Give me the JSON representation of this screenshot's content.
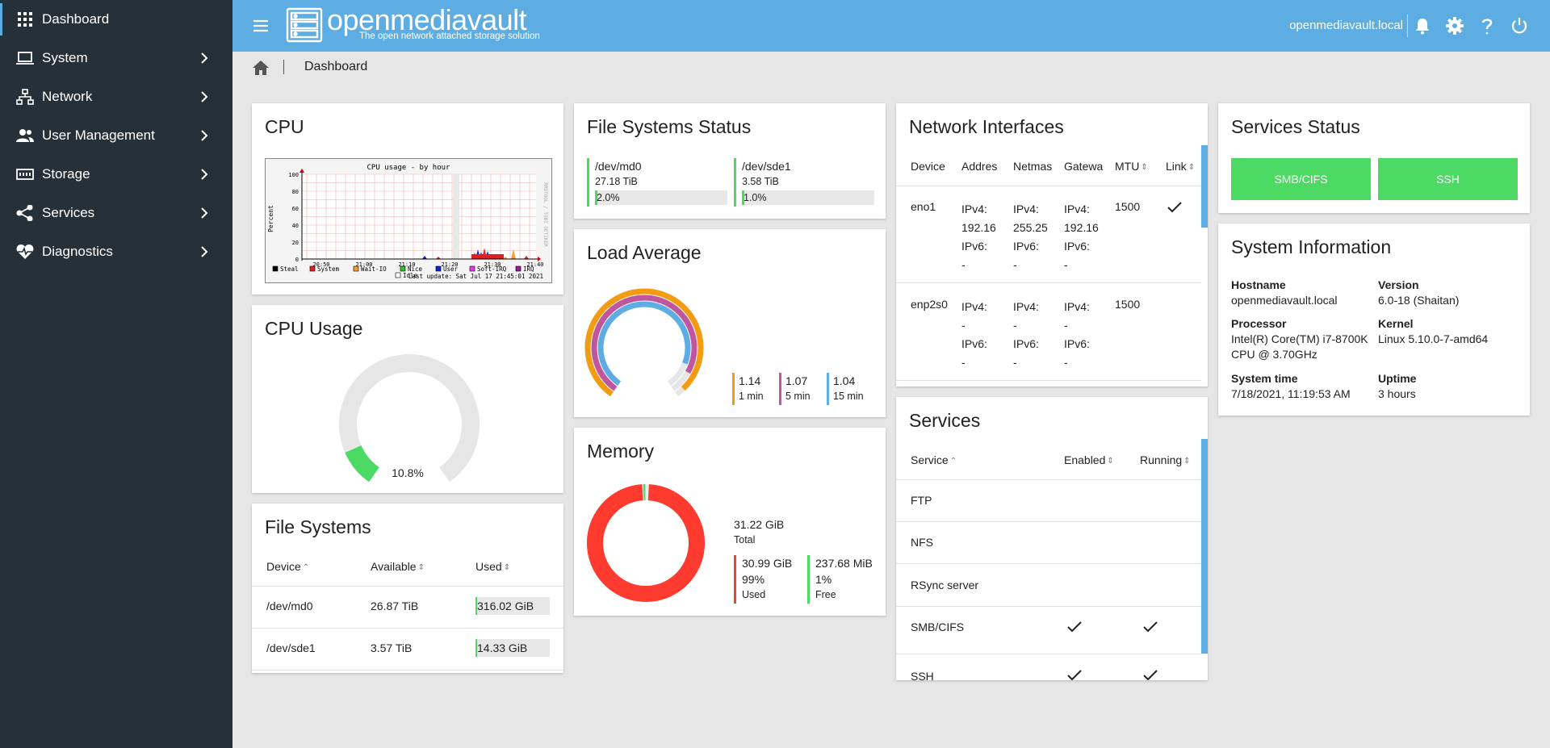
{
  "sidebar": {
    "items": [
      {
        "label": "Dashboard"
      },
      {
        "label": "System"
      },
      {
        "label": "Network"
      },
      {
        "label": "User Management"
      },
      {
        "label": "Storage"
      },
      {
        "label": "Services"
      },
      {
        "label": "Diagnostics"
      }
    ]
  },
  "header": {
    "brand": "openmediavault",
    "tagline": "The open network attached storage solution",
    "hostname": "openmediavault.local"
  },
  "breadcrumb": {
    "current": "Dashboard"
  },
  "cpu": {
    "title": "CPU",
    "graph_title": "CPU usage - by hour",
    "y_label": "Percent",
    "y_ticks": [
      "100",
      "80",
      "60",
      "40",
      "20",
      "0"
    ],
    "x_ticks": [
      "20:50",
      "21:00",
      "21:10",
      "21:20",
      "21:30",
      "21:40"
    ],
    "side_text": "RRDTOOL / TOBI OETIKER",
    "legend": [
      {
        "label": "Steal",
        "color": "#000000"
      },
      {
        "label": "System",
        "color": "#e02020"
      },
      {
        "label": "Wait-IO",
        "color": "#f0a030"
      },
      {
        "label": "Nice",
        "color": "#30c030"
      },
      {
        "label": "User",
        "color": "#1020d0"
      },
      {
        "label": "Soft-IRQ",
        "color": "#e040e0"
      },
      {
        "label": "IRQ",
        "color": "#902090"
      },
      {
        "label": "Idle",
        "color": "#ffffff"
      }
    ],
    "last_update": "Last update: Sat Jul 17 21:45:01 2021"
  },
  "cpu_usage": {
    "title": "CPU Usage",
    "value": "10.8%",
    "fraction": 0.108
  },
  "file_systems": {
    "title": "File Systems",
    "columns": [
      "Device",
      "Available",
      "Used"
    ],
    "rows": [
      {
        "device": "/dev/md0",
        "available": "26.87 TiB",
        "used": "316.02 GiB",
        "fraction": 0.02
      },
      {
        "device": "/dev/sde1",
        "available": "3.57 TiB",
        "used": "14.33 GiB",
        "fraction": 0.01
      }
    ]
  },
  "fs_status": {
    "title": "File Systems Status",
    "items": [
      {
        "device": "/dev/md0",
        "size": "27.18 TiB",
        "percent": "2.0%",
        "fraction": 0.02
      },
      {
        "device": "/dev/sde1",
        "size": "3.58 TiB",
        "percent": "1.0%",
        "fraction": 0.01
      }
    ]
  },
  "load": {
    "title": "Load Average",
    "items": [
      {
        "value": "1.14",
        "label": "1 min",
        "color": "#f39c12",
        "fraction": 1.0
      },
      {
        "value": "1.07",
        "label": "5 min",
        "color": "#c0569e",
        "fraction": 0.94
      },
      {
        "value": "1.04",
        "label": "15 min",
        "color": "#5dade2",
        "fraction": 0.91
      }
    ]
  },
  "memory": {
    "title": "Memory",
    "total": "31.22 GiB",
    "total_label": "Total",
    "used": {
      "value": "30.99 GiB",
      "percent": "99%",
      "label": "Used",
      "color": "#ff3b30",
      "fraction": 0.99
    },
    "free": {
      "value": "237.68 MiB",
      "percent": "1%",
      "label": "Free",
      "color": "#4cd964"
    }
  },
  "network": {
    "title": "Network Interfaces",
    "columns": [
      "Device",
      "Addres",
      "Netmas",
      "Gatewa",
      "MTU",
      "Link"
    ],
    "rows": [
      {
        "device": "eno1",
        "addr": [
          "IPv4:",
          "192.16",
          "IPv6:",
          "-"
        ],
        "mask": [
          "IPv4:",
          "255.25",
          "IPv6:",
          "-"
        ],
        "gw": [
          "IPv4:",
          "192.16",
          "IPv6:",
          "-"
        ],
        "mtu": "1500"
      },
      {
        "device": "enp2s0",
        "addr": [
          "IPv4:",
          "-",
          "IPv6:",
          "-"
        ],
        "mask": [
          "IPv4:",
          "-",
          "IPv6:",
          "-"
        ],
        "gw": [
          "IPv4:",
          "-",
          "IPv6:",
          "-"
        ],
        "mtu": "1500"
      }
    ]
  },
  "services": {
    "title": "Services",
    "columns": [
      "Service",
      "Enabled",
      "Running"
    ],
    "rows": [
      {
        "name": "FTP"
      },
      {
        "name": "NFS"
      },
      {
        "name": "RSync server"
      },
      {
        "name": "SMB/CIFS"
      },
      {
        "name": "SSH"
      }
    ]
  },
  "services_status": {
    "title": "Services Status",
    "buttons": [
      "SMB/CIFS",
      "SSH"
    ]
  },
  "sysinfo": {
    "title": "System Information",
    "hostname_label": "Hostname",
    "hostname": "openmediavault.local",
    "version_label": "Version",
    "version": "6.0-18 (Shaitan)",
    "processor_label": "Processor",
    "processor_1": "Intel(R) Core(TM) i7-8700K",
    "processor_2": "CPU @ 3.70GHz",
    "kernel_label": "Kernel",
    "kernel": "Linux 5.10.0-7-amd64",
    "time_label": "System time",
    "time": "7/18/2021, 11:19:53 AM",
    "uptime_label": "Uptime",
    "uptime": "3 hours"
  }
}
